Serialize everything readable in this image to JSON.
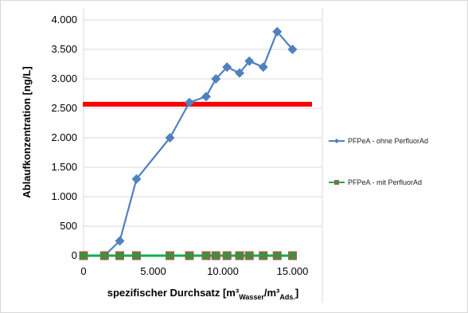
{
  "chart_data": {
    "type": "line",
    "title": "",
    "xlabel": {
      "main": "spezifischer Durchsatz [m³",
      "sub1": "Wasser",
      "mid": "/m³",
      "sub2": "Ads.",
      "end": "]"
    },
    "ylabel": "Ablaufkonzentration [ng/L]",
    "xlim": [
      0,
      16000
    ],
    "ylim": [
      0,
      4000
    ],
    "x_ticks": [
      {
        "value": 0,
        "label": "0"
      },
      {
        "value": 5000,
        "label": "5.000"
      },
      {
        "value": 10000,
        "label": "10.000"
      },
      {
        "value": 15000,
        "label": "15.000"
      }
    ],
    "y_ticks": [
      {
        "value": 0,
        "label": "0"
      },
      {
        "value": 500,
        "label": "500"
      },
      {
        "value": 1000,
        "label": "1.000"
      },
      {
        "value": 1500,
        "label": "1.500"
      },
      {
        "value": 2000,
        "label": "2.000"
      },
      {
        "value": 2500,
        "label": "2.500"
      },
      {
        "value": 3000,
        "label": "3.000"
      },
      {
        "value": 3500,
        "label": "3.500"
      },
      {
        "value": 4000,
        "label": "4.000"
      }
    ],
    "grid": "horizontal",
    "legend_position": "right",
    "threshold": {
      "value": 2570,
      "color": "#ff0000"
    },
    "series": [
      {
        "name": "PFPeA - ohne PerfluorAd",
        "color": "#4f81bd",
        "marker": "diamond",
        "points": [
          {
            "x": 1500,
            "y": 0
          },
          {
            "x": 2600,
            "y": 250
          },
          {
            "x": 3800,
            "y": 1300
          },
          {
            "x": 6200,
            "y": 2000
          },
          {
            "x": 7600,
            "y": 2600
          },
          {
            "x": 8800,
            "y": 2700
          },
          {
            "x": 9500,
            "y": 3000
          },
          {
            "x": 10300,
            "y": 3200
          },
          {
            "x": 11200,
            "y": 3100
          },
          {
            "x": 11900,
            "y": 3300
          },
          {
            "x": 12900,
            "y": 3200
          },
          {
            "x": 13900,
            "y": 3800
          },
          {
            "x": 15000,
            "y": 3500
          }
        ]
      },
      {
        "name": "PFPeA - mit PerfluorAd",
        "color": "#00b050",
        "marker_fill": "#3f8f3f",
        "marker_stroke": "#c0504d",
        "marker": "square",
        "points": [
          {
            "x": 0,
            "y": 0
          },
          {
            "x": 1500,
            "y": 0
          },
          {
            "x": 2600,
            "y": 0
          },
          {
            "x": 3800,
            "y": 0
          },
          {
            "x": 6200,
            "y": 0
          },
          {
            "x": 7600,
            "y": 0
          },
          {
            "x": 8800,
            "y": 0
          },
          {
            "x": 9500,
            "y": 0
          },
          {
            "x": 10300,
            "y": 0
          },
          {
            "x": 11200,
            "y": 0
          },
          {
            "x": 11900,
            "y": 0
          },
          {
            "x": 12900,
            "y": 0
          },
          {
            "x": 13900,
            "y": 0
          },
          {
            "x": 15000,
            "y": 0
          }
        ]
      }
    ]
  }
}
